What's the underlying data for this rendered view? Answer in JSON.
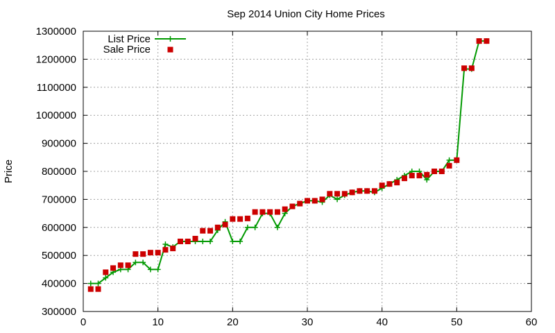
{
  "chart_data": {
    "type": "line",
    "title": "Sep 2014 Union City Home Prices",
    "xlabel": "",
    "ylabel": "Price",
    "xlim": [
      0,
      60
    ],
    "ylim": [
      300000,
      1300000
    ],
    "x_ticks": [
      "0",
      "10",
      "20",
      "30",
      "40",
      "50",
      "60"
    ],
    "y_ticks": [
      "300000",
      "400000",
      "500000",
      "600000",
      "700000",
      "800000",
      "900000",
      "1000000",
      "1100000",
      "1200000",
      "1300000"
    ],
    "grid": true,
    "legend_position": "top-left",
    "series": [
      {
        "name": "List Price",
        "style": "line-with-plus-markers",
        "color": "#009900",
        "x": [
          1,
          2,
          3,
          4,
          5,
          6,
          7,
          8,
          9,
          10,
          11,
          12,
          13,
          14,
          15,
          16,
          17,
          18,
          19,
          20,
          21,
          22,
          23,
          24,
          25,
          26,
          27,
          28,
          29,
          30,
          31,
          32,
          33,
          34,
          35,
          36,
          37,
          38,
          39,
          40,
          41,
          42,
          43,
          44,
          45,
          46,
          47,
          48,
          49,
          50,
          51,
          52,
          53,
          54
        ],
        "values": [
          400000,
          400000,
          420000,
          440000,
          450000,
          450000,
          475000,
          475000,
          450000,
          450000,
          540000,
          530000,
          550000,
          550000,
          550000,
          550000,
          550000,
          590000,
          620000,
          550000,
          550000,
          600000,
          600000,
          650000,
          650000,
          600000,
          650000,
          675000,
          685000,
          695000,
          695000,
          690000,
          715000,
          700000,
          715000,
          725000,
          730000,
          730000,
          725000,
          740000,
          755000,
          770000,
          785000,
          800000,
          800000,
          770000,
          800000,
          800000,
          840000,
          840000,
          1165000,
          1165000,
          1265000,
          1265000
        ]
      },
      {
        "name": "Sale Price",
        "style": "square-markers",
        "color": "#cc0000",
        "x": [
          1,
          2,
          3,
          4,
          5,
          6,
          7,
          8,
          9,
          10,
          11,
          12,
          13,
          14,
          15,
          16,
          17,
          18,
          19,
          20,
          21,
          22,
          23,
          24,
          25,
          26,
          27,
          28,
          29,
          30,
          31,
          32,
          33,
          34,
          35,
          36,
          37,
          38,
          39,
          40,
          41,
          42,
          43,
          44,
          45,
          46,
          47,
          48,
          49,
          50,
          51,
          52,
          53,
          54
        ],
        "values": [
          380000,
          380000,
          440000,
          455000,
          465000,
          465000,
          505000,
          505000,
          510000,
          510000,
          520000,
          525000,
          550000,
          550000,
          560000,
          588000,
          588000,
          600000,
          610000,
          630000,
          630000,
          632000,
          655000,
          655000,
          655000,
          655000,
          665000,
          675000,
          685000,
          695000,
          695000,
          700000,
          720000,
          720000,
          720000,
          725000,
          730000,
          730000,
          730000,
          750000,
          755000,
          760000,
          775000,
          785000,
          785000,
          788000,
          800000,
          800000,
          820000,
          840000,
          1168000,
          1168000,
          1265000,
          1265000
        ]
      }
    ]
  }
}
